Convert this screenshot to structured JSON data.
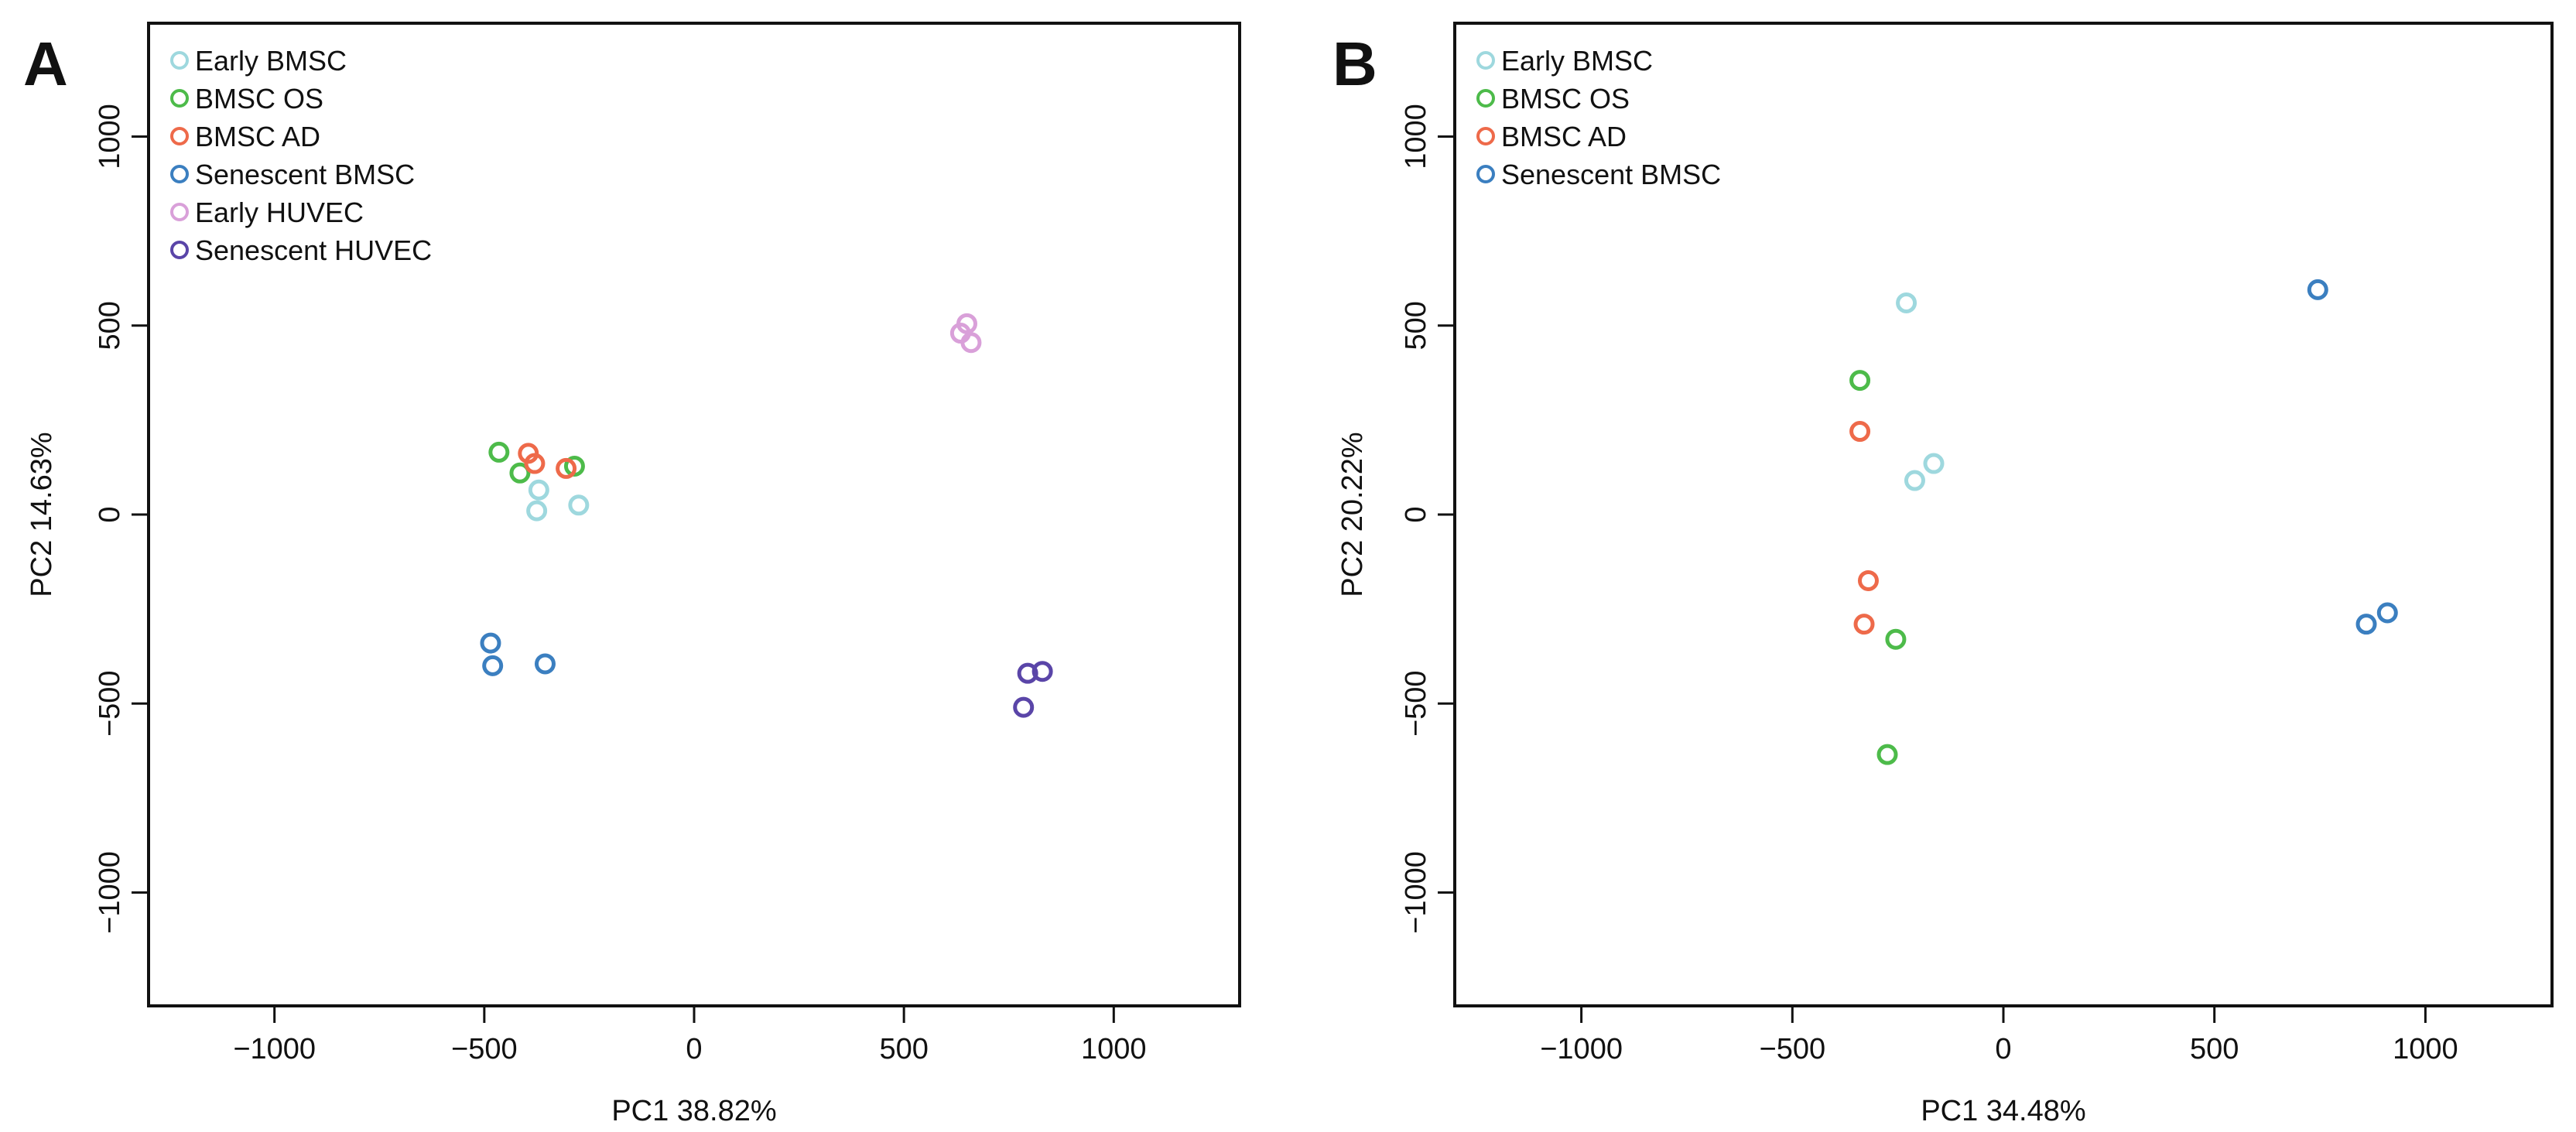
{
  "chart_data": [
    {
      "type": "scatter",
      "panel": "A",
      "title": "",
      "xlabel": "PC1 38.82%",
      "ylabel": "PC2 14.63%",
      "xlim": [
        -1300,
        1300
      ],
      "ylim": [
        -1300,
        1300
      ],
      "xticks": [
        -1000,
        -500,
        0,
        500,
        1000
      ],
      "yticks": [
        -1000,
        -500,
        0,
        500,
        1000
      ],
      "xtick_labels": [
        "−1000",
        "−500",
        "0",
        "500",
        "1000"
      ],
      "ytick_labels": [
        "−1000",
        "−500",
        "0",
        "500",
        "1000"
      ],
      "grid": false,
      "legend_position": "top-left",
      "series": [
        {
          "name": "Early BMSC",
          "color": "#9ed8de",
          "x": [
            -375,
            -370,
            -275
          ],
          "y": [
            10,
            65,
            25
          ]
        },
        {
          "name": "BMSC OS",
          "color": "#4dbb4a",
          "x": [
            -465,
            -415,
            -285
          ],
          "y": [
            165,
            110,
            128
          ]
        },
        {
          "name": "BMSC AD",
          "color": "#ee6a4a",
          "x": [
            -395,
            -380,
            -305
          ],
          "y": [
            162,
            135,
            122
          ]
        },
        {
          "name": "Senescent BMSC",
          "color": "#3b7fc0",
          "x": [
            -485,
            -480,
            -355
          ],
          "y": [
            -340,
            -400,
            -395
          ]
        },
        {
          "name": "Early HUVEC",
          "color": "#d9a0d9",
          "x": [
            635,
            650,
            660
          ],
          "y": [
            480,
            505,
            455
          ]
        },
        {
          "name": "Senescent HUVEC",
          "color": "#5a45a8",
          "x": [
            785,
            795,
            830
          ],
          "y": [
            -510,
            -420,
            -415
          ]
        }
      ]
    },
    {
      "type": "scatter",
      "panel": "B",
      "title": "",
      "xlabel": "PC1 34.48%",
      "ylabel": "PC2 20.22%",
      "xlim": [
        -1300,
        1300
      ],
      "ylim": [
        -1300,
        1300
      ],
      "xticks": [
        -1000,
        -500,
        0,
        500,
        1000
      ],
      "yticks": [
        -1000,
        -500,
        0,
        500,
        1000
      ],
      "xtick_labels": [
        "−1000",
        "−500",
        "0",
        "500",
        "1000"
      ],
      "ytick_labels": [
        "−1000",
        "−500",
        "0",
        "500",
        "1000"
      ],
      "grid": false,
      "legend_position": "top-left",
      "series": [
        {
          "name": "Early BMSC",
          "color": "#9ed8de",
          "x": [
            -230,
            -210,
            -165
          ],
          "y": [
            560,
            90,
            135
          ]
        },
        {
          "name": "BMSC OS",
          "color": "#4dbb4a",
          "x": [
            -340,
            -255,
            -275
          ],
          "y": [
            355,
            -330,
            -635
          ]
        },
        {
          "name": "BMSC AD",
          "color": "#ee6a4a",
          "x": [
            -340,
            -320,
            -330
          ],
          "y": [
            220,
            -175,
            -290
          ]
        },
        {
          "name": "Senescent BMSC",
          "color": "#3b7fc0",
          "x": [
            745,
            860,
            910
          ],
          "y": [
            595,
            -290,
            -260
          ]
        }
      ]
    }
  ]
}
